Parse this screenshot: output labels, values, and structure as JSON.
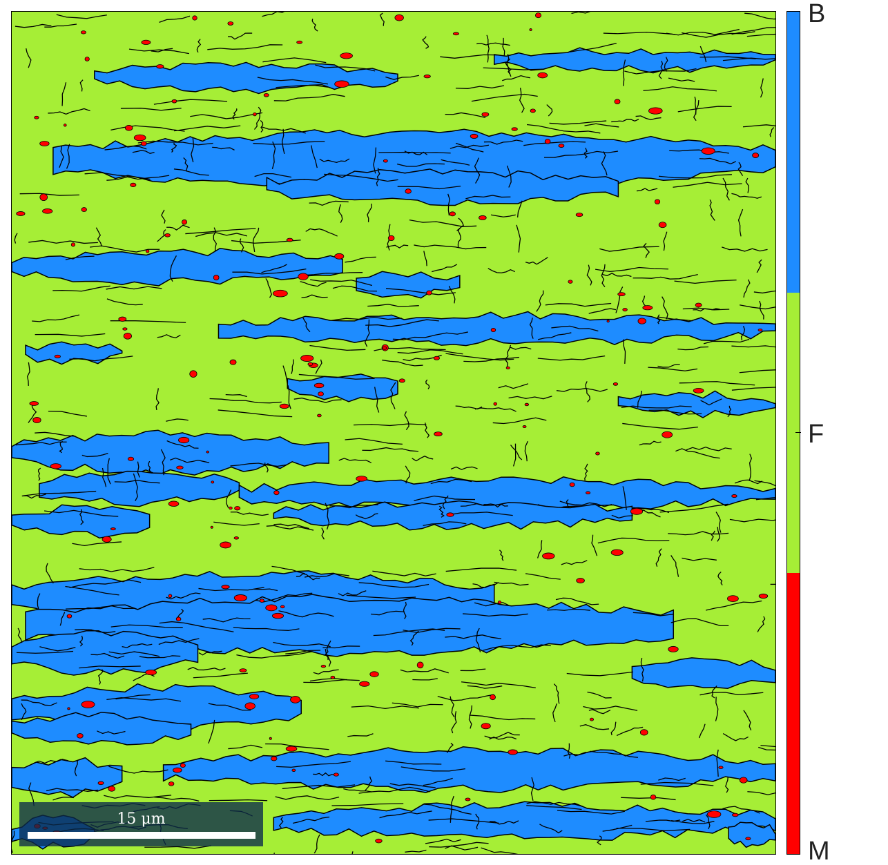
{
  "phases": [
    {
      "key": "bainite",
      "label": "B",
      "color": "#1e8cff"
    },
    {
      "key": "ferrite",
      "label": "F",
      "color": "#a6ee36"
    },
    {
      "key": "martensite",
      "label": "M",
      "color": "#ff0000"
    }
  ],
  "colorbar": {
    "top_label": "B",
    "middle_label": "F",
    "bottom_label": "M"
  },
  "scale_bar": {
    "label": "15 μm"
  },
  "colors": {
    "boundary": "#000000",
    "scale_bar_bg": "#0b2a4a"
  }
}
